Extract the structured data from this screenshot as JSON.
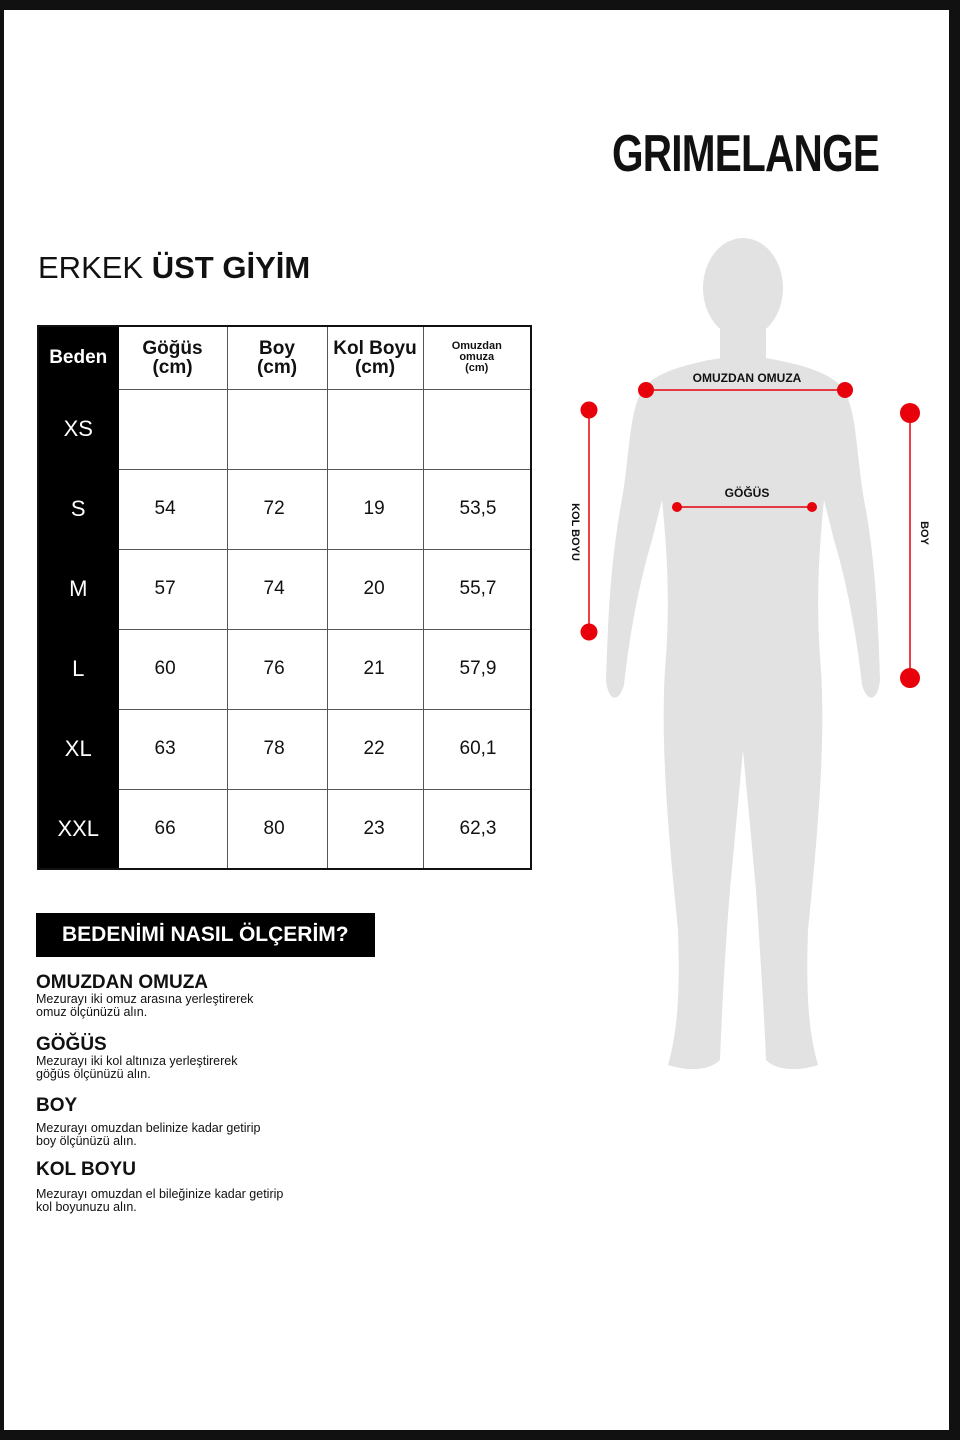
{
  "brand": "GRIMELANGE",
  "title": {
    "light": "ERKEK",
    "bold": "ÜST GİYİM"
  },
  "table": {
    "headers": {
      "size": "Beden",
      "chest": "Göğüs",
      "chest_unit": "(cm)",
      "length": "Boy",
      "length_unit": "(cm)",
      "sleeve": "Kol Boyu",
      "sleeve_unit": "(cm)",
      "shoulder_1": "Omuzdan",
      "shoulder_2": "omuza",
      "shoulder_unit": "(cm)"
    },
    "rows": [
      {
        "size": "XS",
        "chest": "",
        "length": "",
        "sleeve": "",
        "shoulder": ""
      },
      {
        "size": "S",
        "chest": "54",
        "length": "72",
        "sleeve": "19",
        "shoulder": "53,5"
      },
      {
        "size": "M",
        "chest": "57",
        "length": "74",
        "sleeve": "20",
        "shoulder": "55,7"
      },
      {
        "size": "L",
        "chest": "60",
        "length": "76",
        "sleeve": "21",
        "shoulder": "57,9"
      },
      {
        "size": "XL",
        "chest": "63",
        "length": "78",
        "sleeve": "22",
        "shoulder": "60,1"
      },
      {
        "size": "XXL",
        "chest": "66",
        "length": "80",
        "sleeve": "23",
        "shoulder": "62,3"
      }
    ]
  },
  "howto": {
    "title": "BEDENİMİ NASIL ÖLÇERİM?",
    "sections": [
      {
        "heading": "OMUZDAN OMUZA",
        "l1": "Mezurayı iki omuz arasına yerleştirerek",
        "l2": "omuz ölçünüzü alın."
      },
      {
        "heading": "GÖĞÜS",
        "l1": "Mezurayı iki kol altınıza yerleştirerek",
        "l2": "göğüs ölçünüzü alın."
      },
      {
        "heading": "BOY",
        "l1": "Mezurayı omuzdan belinize kadar getirip",
        "l2": "boy ölçünüzü alın."
      },
      {
        "heading": "KOL BOYU",
        "l1": "Mezurayı omuzdan el bileğinize kadar getirip",
        "l2": "kol boyunuzu alın."
      }
    ]
  },
  "figure": {
    "shoulder_label": "OMUZDAN OMUZA",
    "chest_label": "GÖĞÜS",
    "sleeve_label": "KOL BOYU",
    "length_label": "BOY",
    "marker_color": "#e8000b",
    "body_color": "#e2e2e2"
  }
}
